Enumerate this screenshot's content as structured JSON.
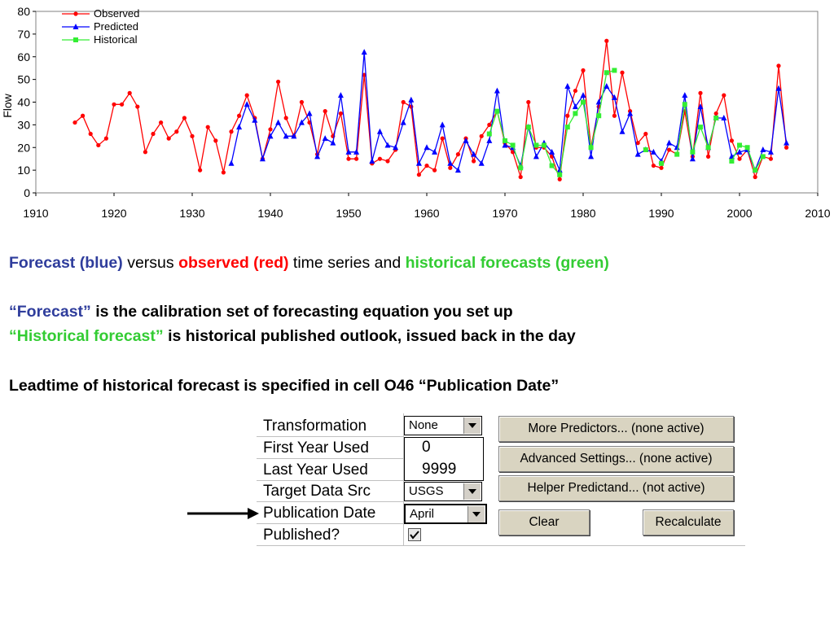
{
  "chart_data": {
    "type": "line",
    "ylabel": "Flow",
    "xlim": [
      1910,
      2010
    ],
    "ylim": [
      0,
      80
    ],
    "xticks": [
      1910,
      1920,
      1930,
      1940,
      1950,
      1960,
      1970,
      1980,
      1990,
      2000,
      2010
    ],
    "yticks": [
      0,
      10,
      20,
      30,
      40,
      50,
      60,
      70,
      80
    ],
    "grid": false,
    "legend_position": "top-left",
    "series": [
      {
        "name": "Observed",
        "color": "#ff0000",
        "marker": "circle",
        "points": [
          [
            1915,
            31
          ],
          [
            1916,
            34
          ],
          [
            1917,
            26
          ],
          [
            1918,
            21
          ],
          [
            1919,
            24
          ],
          [
            1920,
            39
          ],
          [
            1921,
            39
          ],
          [
            1922,
            44
          ],
          [
            1923,
            38
          ],
          [
            1924,
            18
          ],
          [
            1925,
            26
          ],
          [
            1926,
            31
          ],
          [
            1927,
            24
          ],
          [
            1928,
            27
          ],
          [
            1929,
            33
          ],
          [
            1930,
            25
          ],
          [
            1931,
            10
          ],
          [
            1932,
            29
          ],
          [
            1933,
            23
          ],
          [
            1934,
            9
          ],
          [
            1935,
            27
          ],
          [
            1936,
            34
          ],
          [
            1937,
            43
          ],
          [
            1938,
            33
          ],
          [
            1939,
            15
          ],
          [
            1940,
            28
          ],
          [
            1941,
            49
          ],
          [
            1942,
            33
          ],
          [
            1943,
            25
          ],
          [
            1944,
            40
          ],
          [
            1945,
            31
          ],
          [
            1946,
            17
          ],
          [
            1947,
            36
          ],
          [
            1948,
            25
          ],
          [
            1949,
            35
          ],
          [
            1950,
            15
          ],
          [
            1951,
            15
          ],
          [
            1952,
            52
          ],
          [
            1953,
            13
          ],
          [
            1954,
            15
          ],
          [
            1955,
            14
          ],
          [
            1956,
            19
          ],
          [
            1957,
            40
          ],
          [
            1958,
            38
          ],
          [
            1959,
            8
          ],
          [
            1960,
            12
          ],
          [
            1961,
            10
          ],
          [
            1962,
            24
          ],
          [
            1963,
            11
          ],
          [
            1964,
            17
          ],
          [
            1965,
            24
          ],
          [
            1966,
            14
          ],
          [
            1967,
            25
          ],
          [
            1968,
            30
          ],
          [
            1969,
            36
          ],
          [
            1970,
            22
          ],
          [
            1971,
            18
          ],
          [
            1972,
            7
          ],
          [
            1973,
            40
          ],
          [
            1974,
            20
          ],
          [
            1975,
            20
          ],
          [
            1976,
            16
          ],
          [
            1977,
            6
          ],
          [
            1978,
            34
          ],
          [
            1979,
            45
          ],
          [
            1980,
            54
          ],
          [
            1981,
            20
          ],
          [
            1982,
            38
          ],
          [
            1983,
            67
          ],
          [
            1984,
            34
          ],
          [
            1985,
            53
          ],
          [
            1986,
            36
          ],
          [
            1987,
            22
          ],
          [
            1988,
            26
          ],
          [
            1989,
            12
          ],
          [
            1990,
            11
          ],
          [
            1991,
            19
          ],
          [
            1992,
            17
          ],
          [
            1993,
            36
          ],
          [
            1994,
            16
          ],
          [
            1995,
            44
          ],
          [
            1996,
            16
          ],
          [
            1997,
            35
          ],
          [
            1998,
            43
          ],
          [
            1999,
            23
          ],
          [
            2000,
            15
          ],
          [
            2001,
            19
          ],
          [
            2002,
            7
          ],
          [
            2003,
            16
          ],
          [
            2004,
            15
          ],
          [
            2005,
            56
          ],
          [
            2006,
            20
          ]
        ]
      },
      {
        "name": "Predicted",
        "color": "#0000ff",
        "marker": "triangle",
        "points": [
          [
            1935,
            13
          ],
          [
            1936,
            29
          ],
          [
            1937,
            39
          ],
          [
            1938,
            32
          ],
          [
            1939,
            15
          ],
          [
            1940,
            25
          ],
          [
            1941,
            31
          ],
          [
            1942,
            25
          ],
          [
            1943,
            25
          ],
          [
            1944,
            31
          ],
          [
            1945,
            35
          ],
          [
            1946,
            16
          ],
          [
            1947,
            24
          ],
          [
            1948,
            22
          ],
          [
            1949,
            43
          ],
          [
            1950,
            18
          ],
          [
            1951,
            18
          ],
          [
            1952,
            62
          ],
          [
            1953,
            14
          ],
          [
            1954,
            27
          ],
          [
            1955,
            21
          ],
          [
            1956,
            20
          ],
          [
            1957,
            31
          ],
          [
            1958,
            41
          ],
          [
            1959,
            13
          ],
          [
            1960,
            20
          ],
          [
            1961,
            18
          ],
          [
            1962,
            30
          ],
          [
            1963,
            13
          ],
          [
            1964,
            10
          ],
          [
            1965,
            23
          ],
          [
            1966,
            17
          ],
          [
            1967,
            13
          ],
          [
            1968,
            23
          ],
          [
            1969,
            45
          ],
          [
            1970,
            21
          ],
          [
            1971,
            20
          ],
          [
            1972,
            12
          ],
          [
            1973,
            29
          ],
          [
            1974,
            16
          ],
          [
            1975,
            22
          ],
          [
            1976,
            18
          ],
          [
            1977,
            10
          ],
          [
            1978,
            47
          ],
          [
            1979,
            38
          ],
          [
            1980,
            43
          ],
          [
            1981,
            16
          ],
          [
            1982,
            40
          ],
          [
            1983,
            47
          ],
          [
            1984,
            42
          ],
          [
            1985,
            27
          ],
          [
            1986,
            35
          ],
          [
            1987,
            17
          ],
          [
            1988,
            19
          ],
          [
            1989,
            18
          ],
          [
            1990,
            14
          ],
          [
            1991,
            22
          ],
          [
            1992,
            20
          ],
          [
            1993,
            43
          ],
          [
            1994,
            15
          ],
          [
            1995,
            38
          ],
          [
            1996,
            20
          ],
          [
            1997,
            33
          ],
          [
            1998,
            33
          ],
          [
            1999,
            16
          ],
          [
            2000,
            18
          ],
          [
            2001,
            19
          ],
          [
            2002,
            10
          ],
          [
            2003,
            19
          ],
          [
            2004,
            18
          ],
          [
            2005,
            46
          ],
          [
            2006,
            22
          ]
        ]
      },
      {
        "name": "Historical",
        "color": "#33ee33",
        "marker": "square",
        "points": [
          [
            1968,
            26
          ],
          [
            1969,
            36
          ],
          [
            1970,
            23
          ],
          [
            1971,
            21
          ],
          [
            1972,
            11
          ],
          [
            1973,
            29
          ],
          [
            1974,
            21
          ],
          [
            1975,
            21
          ],
          [
            1976,
            12
          ],
          [
            1977,
            8
          ],
          [
            1978,
            29
          ],
          [
            1979,
            35
          ],
          [
            1980,
            40
          ],
          [
            1981,
            20
          ],
          [
            1982,
            34
          ],
          [
            1983,
            53
          ],
          [
            1984,
            54
          ],
          [
            1988,
            19
          ],
          [
            1990,
            13
          ],
          [
            1992,
            17
          ],
          [
            1993,
            39
          ],
          [
            1994,
            18
          ],
          [
            1995,
            29
          ],
          [
            1996,
            20
          ],
          [
            1997,
            33
          ],
          [
            1999,
            14
          ],
          [
            2000,
            21
          ],
          [
            2001,
            20
          ],
          [
            2002,
            10
          ],
          [
            2003,
            16
          ]
        ]
      }
    ]
  },
  "caption": {
    "line1": {
      "forecast": "Forecast (blue)",
      "versus": " versus ",
      "observed": "observed (red)",
      "time_series": " time series and ",
      "historical": "historical forecasts (green)"
    },
    "line2": {
      "quote": "“Forecast”",
      "rest": " is the calibration set of forecasting equation you set up"
    },
    "line3": {
      "quote": "“Historical forecast”",
      "rest": " is historical published outlook, issued back in the day"
    },
    "line4": "Leadtime of historical forecast is specified in cell O46 “Publication Date”"
  },
  "panel": {
    "rows": [
      {
        "label": "Transformation"
      },
      {
        "label": "First Year Used"
      },
      {
        "label": "Last Year Used"
      },
      {
        "label": "Target Data Src"
      },
      {
        "label": "Publication Date"
      },
      {
        "label": "Published?"
      }
    ],
    "transformation_value": "None",
    "first_year_value": "0",
    "last_year_value": "9999",
    "target_src_value": "USGS",
    "publication_date_value": "April",
    "published_checked": true,
    "buttons": {
      "more_predictors": "More Predictors... (none active)",
      "advanced_settings": "Advanced Settings... (none active)",
      "helper_predictand": "Helper Predictand... (not active)",
      "clear": "Clear",
      "recalculate": "Recalculate"
    }
  }
}
